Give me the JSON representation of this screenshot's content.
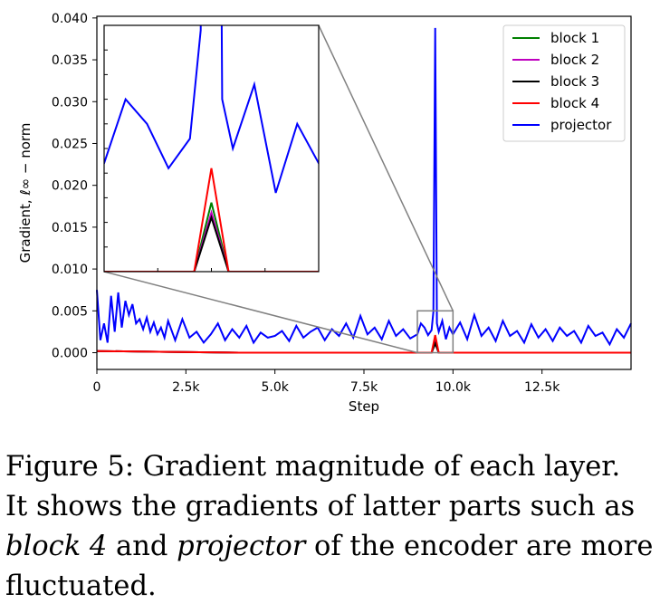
{
  "chart_data": {
    "type": "line",
    "xlabel": "Step",
    "ylabel": "Gradient, ℓ∞ − norm",
    "xlim": [
      0,
      15000
    ],
    "ylim": [
      -0.002,
      0.0402
    ],
    "xticks": [
      0,
      2500,
      5000,
      7500,
      10000,
      12500
    ],
    "xtick_labels": [
      "0",
      "2.5k",
      "5.0k",
      "7.5k",
      "10.0k",
      "12.5k"
    ],
    "yticks": [
      0,
      0.005,
      0.01,
      0.015,
      0.02,
      0.025,
      0.03,
      0.035,
      0.04
    ],
    "ytick_labels": [
      "0.000",
      "0.005",
      "0.010",
      "0.015",
      "0.020",
      "0.025",
      "0.030",
      "0.035",
      "0.040"
    ],
    "legend_position": "top-right",
    "series": [
      {
        "name": "block 1",
        "color": "#008000",
        "spike_step": 9500,
        "spike_value": 0.0014
      },
      {
        "name": "block 2",
        "color": "#bf00bf",
        "spike_step": 9500,
        "spike_value": 0.0012
      },
      {
        "name": "block 3",
        "color": "#000000",
        "spike_step": 9500,
        "spike_value": 0.0011
      },
      {
        "name": "block 4",
        "color": "#ff0000",
        "spike_step": 9500,
        "spike_value": 0.0021
      },
      {
        "name": "projector",
        "color": "#0000ff",
        "x": [
          0,
          100,
          200,
          300,
          400,
          500,
          600,
          700,
          800,
          900,
          1000,
          1100,
          1200,
          1300,
          1400,
          1500,
          1600,
          1700,
          1800,
          1900,
          2000,
          2200,
          2400,
          2600,
          2800,
          3000,
          3200,
          3400,
          3600,
          3800,
          4000,
          4200,
          4400,
          4600,
          4800,
          5000,
          5200,
          5400,
          5600,
          5800,
          6000,
          6200,
          6400,
          6600,
          6800,
          7000,
          7200,
          7400,
          7600,
          7800,
          8000,
          8200,
          8400,
          8600,
          8800,
          9000,
          9100,
          9200,
          9300,
          9400,
          9450,
          9500,
          9550,
          9600,
          9700,
          9800,
          9900,
          10000,
          10200,
          10400,
          10600,
          10800,
          11000,
          11200,
          11400,
          11600,
          11800,
          12000,
          12200,
          12400,
          12600,
          12800,
          13000,
          13200,
          13400,
          13600,
          13800,
          14000,
          14200,
          14400,
          14600,
          14800,
          15000
        ],
        "y": [
          0.0075,
          0.0015,
          0.0035,
          0.0012,
          0.0068,
          0.0025,
          0.0072,
          0.003,
          0.0062,
          0.0045,
          0.0058,
          0.0035,
          0.004,
          0.0028,
          0.0042,
          0.0025,
          0.0036,
          0.0022,
          0.003,
          0.0018,
          0.0038,
          0.0015,
          0.004,
          0.0018,
          0.0025,
          0.0012,
          0.0022,
          0.0035,
          0.0015,
          0.0028,
          0.0018,
          0.0032,
          0.0012,
          0.0024,
          0.0018,
          0.002,
          0.0026,
          0.0014,
          0.0032,
          0.0018,
          0.0025,
          0.003,
          0.0015,
          0.0028,
          0.002,
          0.0035,
          0.0018,
          0.0044,
          0.0022,
          0.003,
          0.0016,
          0.0038,
          0.002,
          0.0028,
          0.0017,
          0.0022,
          0.0035,
          0.003,
          0.0021,
          0.0027,
          0.0049,
          0.0388,
          0.0035,
          0.0025,
          0.0038,
          0.0016,
          0.003,
          0.0022,
          0.0036,
          0.0016,
          0.0045,
          0.002,
          0.003,
          0.0014,
          0.0038,
          0.002,
          0.0026,
          0.0012,
          0.0034,
          0.0018,
          0.0028,
          0.0014,
          0.003,
          0.002,
          0.0026,
          0.0012,
          0.0032,
          0.002,
          0.0024,
          0.001,
          0.0028,
          0.0018,
          0.0035
        ]
      }
    ],
    "inset": {
      "xlim": [
        9000,
        10000
      ],
      "ylim": [
        0.0,
        0.005
      ],
      "zoom_box": {
        "x": [
          9000,
          10000
        ],
        "y": [
          0.0,
          0.005
        ]
      }
    }
  },
  "caption": {
    "line1": "Figure 5: Gradient magnitude of each layer.",
    "line2": "It shows the gradients of latter parts such as",
    "line3_italic_a": "block 4",
    "line3_mid": " and ",
    "line3_italic_b": "projector",
    "line3_end": " of the encoder are more",
    "line4": "fluctuated."
  }
}
